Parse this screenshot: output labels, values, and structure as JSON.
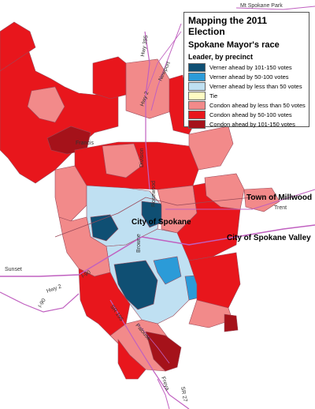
{
  "legend": {
    "title": "Mapping the 2011 Election",
    "subtitle": "Spokane Mayor's race",
    "heading": "Leader, by precinct",
    "items": [
      {
        "label": "Verner ahead by 101-150 votes",
        "color": "#0f4f73"
      },
      {
        "label": "Verner ahead by 50-100 votes",
        "color": "#2b9bd8"
      },
      {
        "label": "Verner ahead by less than 50 votes",
        "color": "#bfe0f2"
      },
      {
        "label": "Tie",
        "color": "#fffcc2"
      },
      {
        "label": "Condon ahead by less than 50 votes",
        "color": "#f28a8a"
      },
      {
        "label": "Condon ahead by 50-100 votes",
        "color": "#e8161c"
      },
      {
        "label": "Condon ahead by 101-150 votes",
        "color": "#a5121a"
      }
    ]
  },
  "places": {
    "city_of_spokane": "City of Spokane",
    "town_of_millwood": "Town of Millwood",
    "city_of_spokane_valley": "City of Spokane Valley"
  },
  "roads": {
    "mt_spokane_park": "Mt Spokane Park",
    "hwy_395": "Hwy 395",
    "newport": "Newport",
    "hwy_2_north": "Hwy 2",
    "francis": "Francis",
    "division": "Division",
    "trent": "Trent",
    "sunset": "Sunset",
    "hwy_2_west": "Hwy 2",
    "i90_center": "I-90",
    "i90_west": "I-90",
    "rosewood": "Rosewood",
    "browne": "Browne",
    "sr195": "SR 195",
    "palouse": "Palouse",
    "freya": "Freya",
    "sr27": "SR 27"
  }
}
